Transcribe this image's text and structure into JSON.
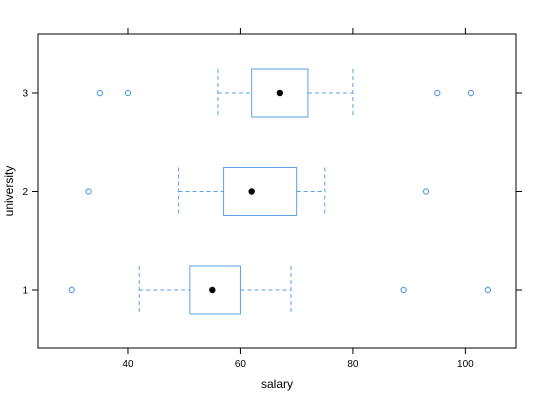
{
  "chart_data": {
    "type": "boxplot",
    "orientation": "horizontal",
    "xlabel": "salary",
    "ylabel": "university",
    "xlim": [
      24,
      109
    ],
    "x_ticks": [
      40,
      60,
      80,
      100
    ],
    "categories": [
      "1",
      "2",
      "3"
    ],
    "boxes": [
      {
        "category": "1",
        "whisker_low": 42,
        "q1": 51,
        "median": 55,
        "q3": 60,
        "whisker_high": 69,
        "outliers": [
          30,
          89,
          104
        ]
      },
      {
        "category": "2",
        "whisker_low": 49,
        "q1": 57,
        "median": 62,
        "q3": 70,
        "whisker_high": 75,
        "outliers": [
          33,
          93
        ]
      },
      {
        "category": "3",
        "whisker_low": 56,
        "q1": 62,
        "median": 67,
        "q3": 72,
        "whisker_high": 80,
        "outliers": [
          35,
          40,
          95,
          101
        ]
      }
    ],
    "colors": {
      "box": "#5f9fe6",
      "whisker": "#5f9fe6",
      "median": "#000000",
      "outlier": "#5f9fe6",
      "frame": "#000000"
    }
  }
}
